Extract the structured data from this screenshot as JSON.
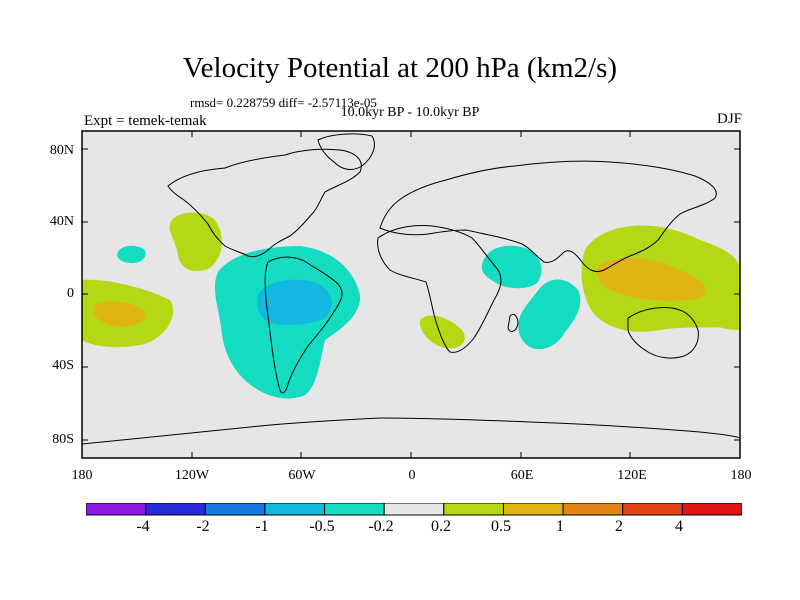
{
  "title": "Velocity Potential at 200 hPa (km2/s)",
  "stats": "rmsd= 0.228759 diff= -2.57113e-05",
  "subtitle": "10.0kyr BP - 10.0kyr BP",
  "left_label": "Expt = temek-temak",
  "right_label": "DJF",
  "y_ticks": [
    "80N",
    "40N",
    "0",
    "40S",
    "80S"
  ],
  "x_ticks": [
    "180",
    "120W",
    "60W",
    "0",
    "60E",
    "120E",
    "180"
  ],
  "colorbar": {
    "colors": [
      "#8a1ae0",
      "#2a2ad8",
      "#1478e0",
      "#12b8e0",
      "#14dcc0",
      "#e6e6e6",
      "#b4d814",
      "#e0b414",
      "#e08414",
      "#e04414",
      "#e01414"
    ],
    "labels": [
      "-4",
      "-2",
      "-1",
      "-0.5",
      "-0.2",
      "0.2",
      "0.5",
      "1",
      "2",
      "4"
    ]
  },
  "map_colors": {
    "ocean_bg": "#e6e6e6",
    "neg_weak": "#14dcc0",
    "neg_mid": "#12b8e0",
    "pos_weak": "#b4d814",
    "pos_mid": "#e0b414"
  }
}
